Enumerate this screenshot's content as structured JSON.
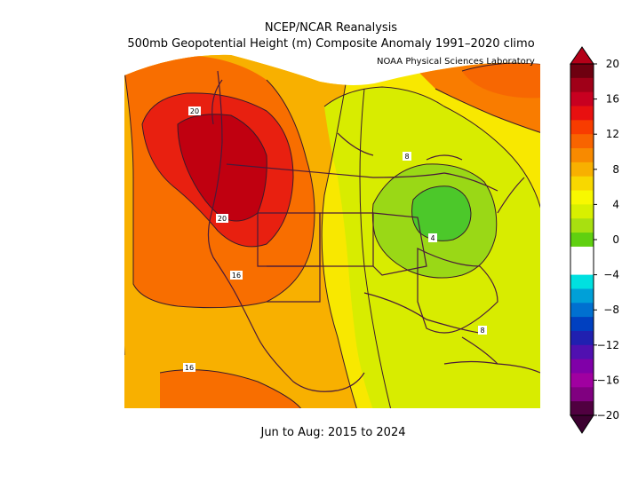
{
  "header": {
    "title_line1": "NCEP/NCAR Reanalysis",
    "title_line2": "500mb Geopotential Height (m) Composite Anomaly 1991–2020 climo",
    "credit": "NOAA Physical Sciences Laboratory"
  },
  "subtitle": "Jun to Aug: 2015 to 2024",
  "contour_labels": [
    "20",
    "20",
    "16",
    "16",
    "8",
    "4",
    "8"
  ],
  "colorbar": {
    "tick_labels": [
      "20",
      "16",
      "12",
      "8",
      "4",
      "0",
      "−4",
      "−8",
      "−12",
      "−16",
      "−20"
    ],
    "colors": [
      "#6e0010",
      "#a00018",
      "#c80020",
      "#e81010",
      "#f83c00",
      "#f86400",
      "#f88a00",
      "#f8b000",
      "#f8d800",
      "#f8f800",
      "#d8f000",
      "#a8e010",
      "#60d010",
      "#ffffff",
      "#ffffff",
      "#00e0e0",
      "#00a0d8",
      "#0070d0",
      "#0040c0",
      "#2020b0",
      "#5010b0",
      "#8000a8",
      "#a000a0",
      "#800080",
      "#500040"
    ]
  }
}
